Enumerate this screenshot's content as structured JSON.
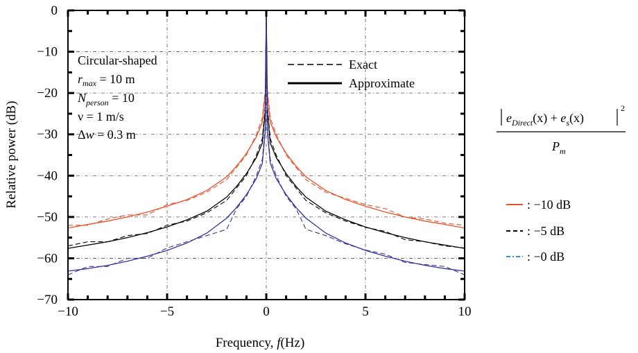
{
  "chart_data": {
    "type": "line",
    "xlabel": "Frequency,",
    "xlabel_var": "f",
    "xlabel_unit": "(Hz)",
    "ylabel": "Relative power (dB)",
    "xlim": [
      -10,
      10
    ],
    "ylim": [
      -70,
      0
    ],
    "xticks": [
      -10,
      -5,
      0,
      5,
      10
    ],
    "xtick_labels": [
      "−10",
      "−5",
      "0",
      "5",
      "10"
    ],
    "yticks": [
      0,
      -10,
      -20,
      -30,
      -40,
      -50,
      -60,
      -70
    ],
    "ytick_labels": [
      "0",
      "−10",
      "−20",
      "−30",
      "−40",
      "−50",
      "−60",
      "−70"
    ],
    "grid": true,
    "legend_style": {
      "exact_label": "Exact",
      "approx_label": "Approximate",
      "placement": "top-center"
    },
    "annotation": {
      "shape": "Circular-shaped",
      "rmax_sym": "r",
      "rmax_sub": "max",
      "rmax_val": " = 10 m",
      "nperson_sym": "N",
      "nperson_sub": "person",
      "nperson_val": " = 10",
      "velocity": "ν = 1 m/s",
      "dw_sym": "Δ",
      "dw_var": "w",
      "dw_val": " = 0.3 m"
    },
    "formula": {
      "e_direct": "e",
      "e_direct_sub": "Direct",
      "x_arg": "(x)",
      "plus": " + ",
      "e_s": "e",
      "e_s_sub": "s",
      "exponent": "2",
      "denominator_sym": "P",
      "denominator_sub": "m"
    },
    "series_legend": [
      {
        "label": ": −10 dB",
        "color": "#e8502a",
        "dash": "solid"
      },
      {
        "label": ": −5 dB",
        "color": "#000000",
        "dash": "dashed"
      },
      {
        "label": ": −0 dB",
        "color": "#1f9bd7",
        "dash": "dashdot",
        "text_color": "#33339a"
      }
    ],
    "series": [
      {
        "label": "−10 dB",
        "color": "#e8502a",
        "x": [
          -10,
          -9,
          -8,
          -7,
          -6,
          -5,
          -4,
          -3,
          -2,
          -1.5,
          -1,
          -0.5,
          -0.2,
          -0.05,
          0,
          0.05,
          0.2,
          0.5,
          1,
          1.5,
          2,
          3,
          4,
          5,
          6,
          7,
          8,
          9,
          10
        ],
        "approx": [
          -52.7,
          -51.8,
          -51,
          -50,
          -48.8,
          -47.4,
          -45.8,
          -43.6,
          -40.3,
          -37.7,
          -34.6,
          -30.6,
          -27,
          -20,
          0,
          -20,
          -27,
          -30.6,
          -34.6,
          -37.7,
          -40.3,
          -43.6,
          -45.8,
          -47.4,
          -48.8,
          -50,
          -51,
          -51.8,
          -52.7
        ],
        "exact": [
          -52,
          -52,
          -50.5,
          -49.5,
          -49.5,
          -47,
          -46,
          -44,
          -41,
          -38,
          -35,
          -30,
          -26,
          -19,
          0,
          -19,
          -26,
          -30,
          -35,
          -38,
          -41,
          -44,
          -45.5,
          -47,
          -48,
          -50,
          -50.5,
          -51.5,
          -52
        ]
      },
      {
        "label": "−5 dB",
        "color": "#000000",
        "x": [
          -10,
          -9,
          -8,
          -7,
          -6,
          -5,
          -4,
          -3,
          -2,
          -1.5,
          -1,
          -0.5,
          -0.2,
          -0.05,
          0,
          0.05,
          0.2,
          0.5,
          1,
          1.5,
          2,
          3,
          4,
          5,
          6,
          7,
          8,
          9,
          10
        ],
        "approx": [
          -57.6,
          -56.8,
          -56,
          -55,
          -53.8,
          -52.4,
          -50.7,
          -48.6,
          -45.2,
          -42.6,
          -39.5,
          -35.6,
          -32.1,
          -24,
          0,
          -24,
          -32.1,
          -35.6,
          -39.5,
          -42.6,
          -45.2,
          -48.6,
          -50.7,
          -52.4,
          -53.8,
          -55,
          -56,
          -56.8,
          -57.6
        ],
        "exact": [
          -57,
          -56,
          -56,
          -54.5,
          -54,
          -52,
          -51,
          -49,
          -46,
          -43,
          -40,
          -35,
          -31,
          -23,
          0,
          -23,
          -31,
          -35,
          -40,
          -43,
          -46,
          -49,
          -51,
          -52.5,
          -53.5,
          -55.5,
          -56,
          -57,
          -57.5
        ]
      },
      {
        "label": "−0 dB",
        "color": "#33339a",
        "x": [
          -10,
          -9,
          -8,
          -7,
          -6,
          -5,
          -4,
          -3,
          -2,
          -1.5,
          -1,
          -0.5,
          -0.2,
          -0.05,
          0,
          0.05,
          0.2,
          0.5,
          1,
          1.5,
          2,
          3,
          4,
          5,
          6,
          7,
          8,
          9,
          10
        ],
        "approx": [
          -63.1,
          -62.5,
          -61.7,
          -60.7,
          -59.5,
          -58.1,
          -56.3,
          -53.9,
          -50.3,
          -47.7,
          -44.6,
          -40.7,
          -37,
          -29,
          0,
          -29,
          -37,
          -40.7,
          -44.6,
          -47.7,
          -50.3,
          -53.9,
          -56.3,
          -58.1,
          -59.5,
          -60.7,
          -61.7,
          -62.5,
          -63.1
        ],
        "exact": [
          -64,
          -62,
          -62,
          -60,
          -60,
          -57.5,
          -56,
          -54.5,
          -53,
          -48,
          -45,
          -40,
          -36,
          -28,
          0,
          -28,
          -36,
          -40,
          -45,
          -48,
          -53,
          -54.5,
          -56.5,
          -58,
          -59,
          -61,
          -61.5,
          -62,
          -64
        ]
      }
    ]
  }
}
